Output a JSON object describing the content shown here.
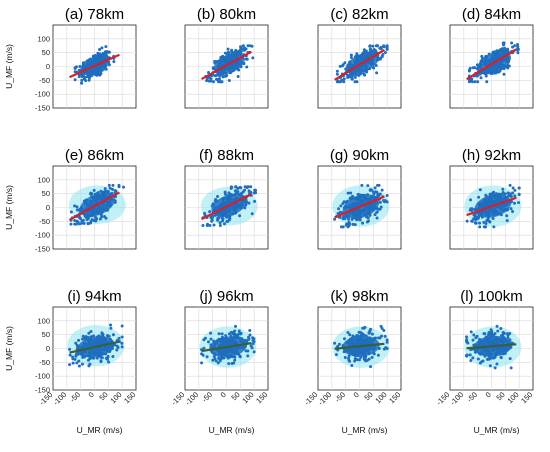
{
  "chart_data": {
    "type": "scatter",
    "layout": "4x3 grid of scatter panels",
    "xlabel": "U_MR (m/s)",
    "ylabel": "U_MF (m/s)",
    "xlim": [
      -150,
      150
    ],
    "ylim": [
      -150,
      150
    ],
    "xticks": [
      -150,
      -100,
      -50,
      0,
      50,
      100,
      150
    ],
    "yticks": [
      -150,
      -100,
      -50,
      0,
      50,
      100
    ],
    "grid": true,
    "colors": {
      "points": "#1f6fbf",
      "halo": "#8ee6f0",
      "fit_line": "#d61f2a",
      "fit_line_dark": "#3a5f3a"
    },
    "panels": [
      {
        "title": "(a) 78km",
        "slope": 0.45,
        "intercept": 2,
        "cloud": {
          "cx": 0,
          "cy": 10,
          "sx": 30,
          "sy": 22,
          "rx": 70,
          "ry": 60
        },
        "line_color": "#d61f2a",
        "halo": false
      },
      {
        "title": "(b) 80km",
        "slope": 0.55,
        "intercept": 4,
        "cloud": {
          "cx": 10,
          "cy": 10,
          "sx": 35,
          "sy": 22,
          "rx": 85,
          "ry": 55
        },
        "line_color": "#d61f2a",
        "halo": false
      },
      {
        "title": "(c) 82km",
        "slope": 0.6,
        "intercept": 6,
        "cloud": {
          "cx": 10,
          "cy": 10,
          "sx": 38,
          "sy": 22,
          "rx": 90,
          "ry": 55
        },
        "line_color": "#d61f2a",
        "halo": false
      },
      {
        "title": "(d) 84km",
        "slope": 0.6,
        "intercept": 8,
        "cloud": {
          "cx": 10,
          "cy": 15,
          "sx": 38,
          "sy": 24,
          "rx": 90,
          "ry": 60
        },
        "line_color": "#d61f2a",
        "halo": false
      },
      {
        "title": "(e) 86km",
        "slope": 0.55,
        "intercept": 5,
        "cloud": {
          "cx": 10,
          "cy": 10,
          "sx": 40,
          "sy": 25,
          "rx": 95,
          "ry": 60
        },
        "line_color": "#d61f2a",
        "halo": true
      },
      {
        "title": "(f) 88km",
        "slope": 0.5,
        "intercept": 3,
        "cloud": {
          "cx": 10,
          "cy": 5,
          "sx": 40,
          "sy": 25,
          "rx": 95,
          "ry": 60
        },
        "line_color": "#d61f2a",
        "halo": true
      },
      {
        "title": "(g) 90km",
        "slope": 0.42,
        "intercept": 2,
        "cloud": {
          "cx": 5,
          "cy": 5,
          "sx": 40,
          "sy": 27,
          "rx": 95,
          "ry": 65
        },
        "line_color": "#d61f2a",
        "halo": true
      },
      {
        "title": "(h) 92km",
        "slope": 0.35,
        "intercept": 4,
        "cloud": {
          "cx": 5,
          "cy": 5,
          "sx": 40,
          "sy": 27,
          "rx": 95,
          "ry": 65
        },
        "line_color": "#d61f2a",
        "halo": true
      },
      {
        "title": "(i) 94km",
        "slope": 0.22,
        "intercept": 5,
        "cloud": {
          "cx": 5,
          "cy": 10,
          "sx": 40,
          "sy": 25,
          "rx": 95,
          "ry": 65
        },
        "line_color": "#3a5f3a",
        "halo": true
      },
      {
        "title": "(j) 96km",
        "slope": 0.16,
        "intercept": 5,
        "cloud": {
          "cx": 5,
          "cy": 5,
          "sx": 40,
          "sy": 25,
          "rx": 95,
          "ry": 65
        },
        "line_color": "#3a5f3a",
        "halo": true
      },
      {
        "title": "(k) 98km",
        "slope": 0.1,
        "intercept": 8,
        "cloud": {
          "cx": 5,
          "cy": 5,
          "sx": 40,
          "sy": 25,
          "rx": 95,
          "ry": 65
        },
        "line_color": "#3a5f3a",
        "halo": true
      },
      {
        "title": "(l) 100km",
        "slope": 0.08,
        "intercept": 8,
        "cloud": {
          "cx": 5,
          "cy": 5,
          "sx": 40,
          "sy": 25,
          "rx": 95,
          "ry": 65
        },
        "line_color": "#3a5f3a",
        "halo": true
      }
    ]
  }
}
